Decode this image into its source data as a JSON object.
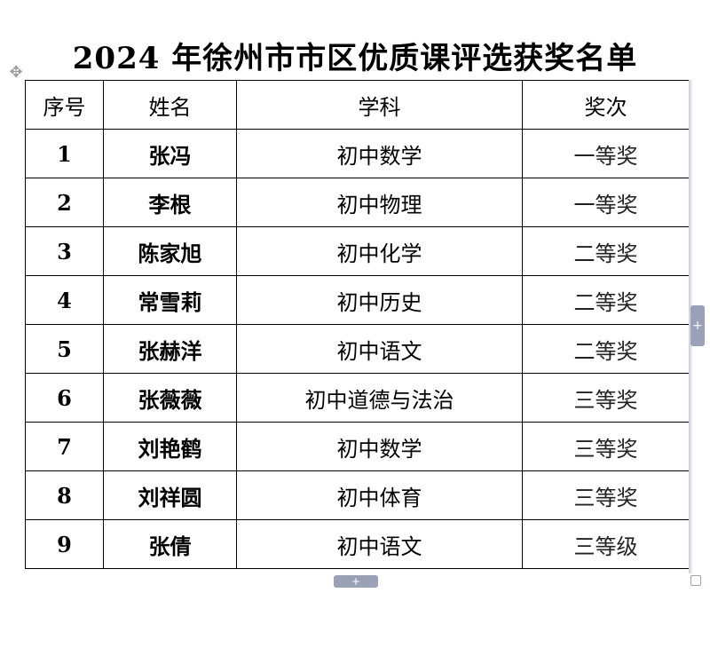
{
  "title": "2024 年徐州市市区优质课评选获奖名单",
  "table": {
    "headers": {
      "no": "序号",
      "name": "姓名",
      "subject": "学科",
      "award": "奖次"
    },
    "rows": [
      {
        "no": "1",
        "name": "张冯",
        "subject": "初中数学",
        "award": "一等奖"
      },
      {
        "no": "2",
        "name": "李根",
        "subject": "初中物理",
        "award": "一等奖"
      },
      {
        "no": "3",
        "name": "陈家旭",
        "subject": "初中化学",
        "award": "二等奖"
      },
      {
        "no": "4",
        "name": "常雪莉",
        "subject": "初中历史",
        "award": "二等奖"
      },
      {
        "no": "5",
        "name": "张赫洋",
        "subject": "初中语文",
        "award": "二等奖"
      },
      {
        "no": "6",
        "name": "张薇薇",
        "subject": "初中道德与法治",
        "award": "三等奖"
      },
      {
        "no": "7",
        "name": "刘艳鹤",
        "subject": "初中数学",
        "award": "三等奖"
      },
      {
        "no": "8",
        "name": "刘祥圆",
        "subject": "初中体育",
        "award": "三等奖"
      },
      {
        "no": "9",
        "name": "张倩",
        "subject": "初中语文",
        "award": "三等级"
      }
    ]
  },
  "icons": {
    "move_handle": "move-cross-icon",
    "resize_right": "plus-icon",
    "resize_bottom": "plus-icon",
    "resize_corner": "resize-corner-icon"
  },
  "glyphs": {
    "move": "✥",
    "plus": "+"
  }
}
